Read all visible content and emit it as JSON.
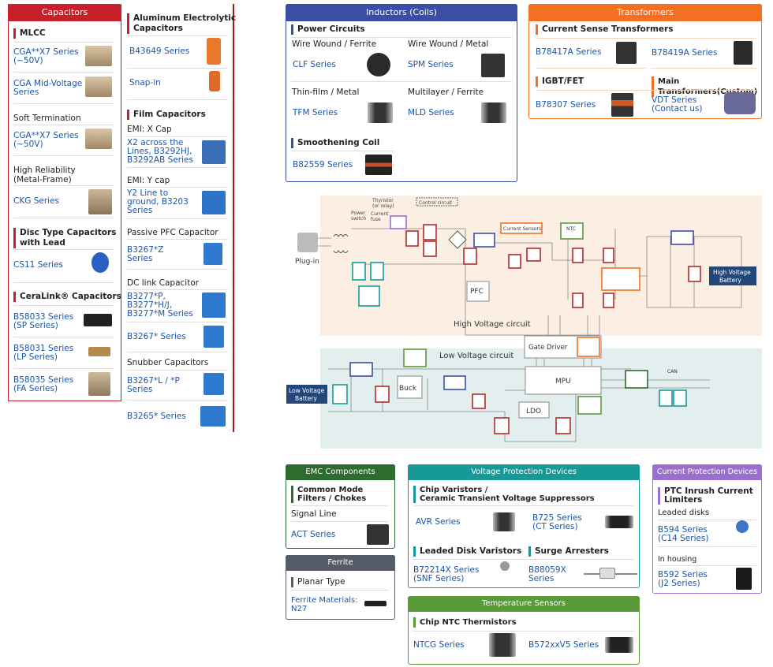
{
  "capacitors": {
    "title": "Capacitors",
    "color": "#c8202a",
    "left": {
      "mlcc": "MLCC",
      "cga1": "CGA**X7 Series\n(~50V)",
      "cga_mid": "CGA Mid-Voltage\nSeries",
      "soft": "Soft Termination",
      "cga2": "CGA**X7 Series\n(~50V)",
      "highrel": "High Reliability\n(Metal-Frame)",
      "ckg": "CKG Series",
      "disc": "Disc Type Capacitors\nwith Lead",
      "cs11": "CS11 Series",
      "ceralink": "CeraLink® Capacitors",
      "b58033": "B58033 Series\n(SP Series)",
      "b58031": "B58031 Series\n(LP Series)",
      "b58035": "B58035 Series\n(FA Series)"
    },
    "right": {
      "alu": "Aluminum Electrolytic\nCapacitors",
      "b43649": "B43649 Series",
      "snap": "Snap-in",
      "film": "Film Capacitors",
      "emix": "EMI: X Cap",
      "x2": "X2  across the\nLines, B3292HJ,\nB3292AB Series",
      "emiy": "EMI: Y cap",
      "y2": "Y2 Line to\nground, B3203\nSeries",
      "pfc": "Passive PFC Capacitor",
      "b3267z": "B3267*Z\nSeries",
      "dclink": "DC link Capacitor",
      "b3277": "B3277*P,\nB3277*H/J,\nB3277*M Series",
      "b3267": "B3267* Series",
      "snubber": "Snubber Capacitors",
      "b3267lp": "B3267*L / *P\nSeries",
      "b3265": "B3265* Series"
    }
  },
  "inductors": {
    "title": "Inductors (Coils)",
    "color": "#3b4ea6",
    "power": "Power Circuits",
    "ww_ferrite": "Wire Wound / Ferrite",
    "clf": "CLF Series",
    "ww_metal": "Wire Wound / Metal",
    "spm": "SPM Series",
    "tf_metal": "Thin-film / Metal",
    "tfm": "TFM Series",
    "ml_ferrite": "Multilayer / Ferrite",
    "mld": "MLD Series",
    "smooth": "Smoothening Coil",
    "b82559": "B82559 Series"
  },
  "transformers": {
    "title": "Transformers",
    "color": "#f36f21",
    "cst": "Current Sense Transformers",
    "b78417": "B78417A Series",
    "b78419": "B78419A Series",
    "igbt": "IGBT/FET",
    "b78307": "B78307 Series",
    "main": "Main Transformers(Custom)",
    "vdt": "VDT Series\n(Contact us)"
  },
  "diagram": {
    "plugin": "Plug-in",
    "power_switch": "Power\nswitch",
    "thyristor": "Thyristor\n(or relay)",
    "fuse": "Current\nfuse",
    "control": "Control circuit",
    "current_sensors": "Current Sensors",
    "ntc": "NTC",
    "pfc": "PFC",
    "hv_circuit": "High Voltage circuit",
    "hv_battery": "High Voltage\nBattery",
    "gate_driver": "Gate Driver",
    "lv_circuit": "Low Voltage circuit",
    "lv_battery": "Low Voltage\nBattery",
    "buck": "Buck",
    "mpu": "MPU",
    "ldo": "LDO",
    "can": "CAN"
  },
  "emc": {
    "title": "EMC Components",
    "color": "#2e6b2e",
    "cmf": "Common Mode\nFilters / Chokes",
    "signal": "Signal Line",
    "act": "ACT Series"
  },
  "ferrite": {
    "title": "Ferrite",
    "color": "#565b68",
    "planar": "Planar Type",
    "n27": "Ferrite Materials:\nN27"
  },
  "voltage": {
    "title": "Voltage Protection Devices",
    "color": "#17999a",
    "chip": "Chip Varistors /\nCeramic Transient Voltage Suppressors",
    "avr": "AVR Series",
    "b725": "B725 Series\n(CT Series)",
    "leaded": "Leaded Disk Varistors",
    "surge": "Surge Arresters",
    "b72214": "B72214X Series\n(SNF Series)",
    "b88059": "B88059X\nSeries"
  },
  "temperature": {
    "title": "Temperature Sensors",
    "color": "#5a9a3a",
    "ntc": "Chip NTC Thermistors",
    "ntcg": "NTCG Series",
    "b572": "B572xxV5 Series"
  },
  "current": {
    "title": "Current Protection Devices",
    "color": "#9b6fd0",
    "ptc": "PTC Inrush Current\nLimiters",
    "leaded": "Leaded disks",
    "b594": "B594 Series\n(C14 Series)",
    "housing": "In housing",
    "b592": "B592 Series\n(J2 Series)"
  }
}
